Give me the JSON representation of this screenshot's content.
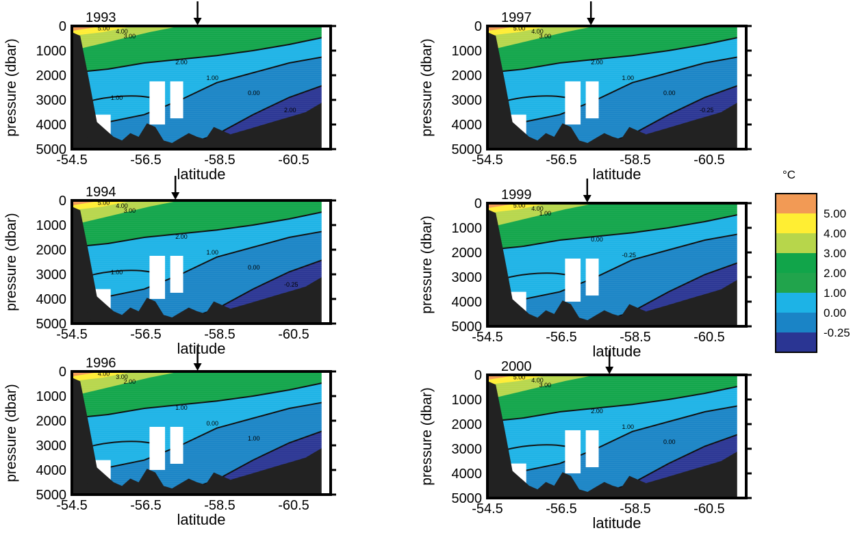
{
  "legend": {
    "unit": "°C",
    "labels": [
      "5.00",
      "4.00",
      "3.00",
      "2.00",
      "1.00",
      "0.00",
      "-0.25"
    ],
    "colors": [
      "#F29A55",
      "#FFEE33",
      "#B7D64B",
      "#11A54A",
      "#21A44C",
      "#1DB3E6",
      "#1A84C6",
      "#2A3593"
    ]
  },
  "chart_data": [
    {
      "type": "heatmap",
      "year": "1993",
      "xlabel": "latitude",
      "ylabel": "pressure (dbar)",
      "xticks": [
        "-54.5",
        "-56.5",
        "-58.5",
        "-60.5"
      ],
      "yticks": [
        "0",
        "1000",
        "2000",
        "3000",
        "4000",
        "5000"
      ],
      "xlim": [
        -54.5,
        -61.5
      ],
      "ylim": [
        0,
        5000
      ],
      "contour_labels": [
        "5.00",
        "4.00",
        "3.00",
        "2.00",
        "1.00",
        "0.00",
        "2.00",
        "1.00"
      ],
      "arrow_latitude": -57.9
    },
    {
      "type": "heatmap",
      "year": "1997",
      "xlabel": "latitude",
      "ylabel": "pressure (dbar)",
      "xticks": [
        "-54.5",
        "-56.5",
        "-58.5",
        "-60.5"
      ],
      "yticks": [
        "0",
        "1000",
        "2000",
        "3000",
        "4000",
        "5000"
      ],
      "xlim": [
        -54.5,
        -61.5
      ],
      "ylim": [
        0,
        5000
      ],
      "contour_labels": [
        "5.00",
        "4.00",
        "3.00",
        "2.00",
        "1.00",
        "0.00",
        "-0.25"
      ],
      "arrow_latitude": -57.3
    },
    {
      "type": "heatmap",
      "year": "1994",
      "xlabel": "latitude",
      "ylabel": "pressure (dbar)",
      "xticks": [
        "-54.5",
        "-56.5",
        "-58.5",
        "-60.5"
      ],
      "yticks": [
        "0",
        "1000",
        "2000",
        "3000",
        "4000",
        "5000"
      ],
      "xlim": [
        -54.5,
        -61.5
      ],
      "ylim": [
        0,
        5000
      ],
      "contour_labels": [
        "5.00",
        "4.00",
        "3.00",
        "2.00",
        "1.00",
        "0.00",
        "-0.25",
        "1.00"
      ],
      "arrow_latitude": -57.3
    },
    {
      "type": "heatmap",
      "year": "1999",
      "xlabel": "latitude",
      "ylabel": "pressure (dbar)",
      "xticks": [
        "-54.5",
        "-56.5",
        "-58.5",
        "-60.5"
      ],
      "yticks": [
        "0",
        "1000",
        "2000",
        "3000",
        "4000",
        "5000"
      ],
      "xlim": [
        -54.5,
        -61.5
      ],
      "ylim": [
        0,
        5000
      ],
      "contour_labels": [
        "5.00",
        "4.00",
        "1.00",
        "0.00",
        "-0.25"
      ],
      "arrow_latitude": -57.2
    },
    {
      "type": "heatmap",
      "year": "1996",
      "xlabel": "latitude",
      "ylabel": "pressure (dbar)",
      "xticks": [
        "-54.5",
        "-56.5",
        "-58.5",
        "-60.5"
      ],
      "yticks": [
        "0",
        "1000",
        "2000",
        "3000",
        "4000",
        "5000"
      ],
      "xlim": [
        -54.5,
        -61.5
      ],
      "ylim": [
        0,
        5000
      ],
      "contour_labels": [
        "4.00",
        "3.00",
        "2.00",
        "1.00",
        "0.00",
        "1.00"
      ],
      "arrow_latitude": -57.9
    },
    {
      "type": "heatmap",
      "year": "2000",
      "xlabel": "latitude",
      "ylabel": "pressure (dbar)",
      "xticks": [
        "-54.5",
        "-56.5",
        "-58.5",
        "-60.5"
      ],
      "yticks": [
        "0",
        "1000",
        "2000",
        "3000",
        "4000",
        "5000"
      ],
      "xlim": [
        -54.5,
        -61.5
      ],
      "ylim": [
        0,
        5000
      ],
      "contour_labels": [
        "5.00",
        "4.00",
        "3.00",
        "2.00",
        "1.00",
        "0.00"
      ],
      "arrow_latitude": -57.8
    }
  ]
}
